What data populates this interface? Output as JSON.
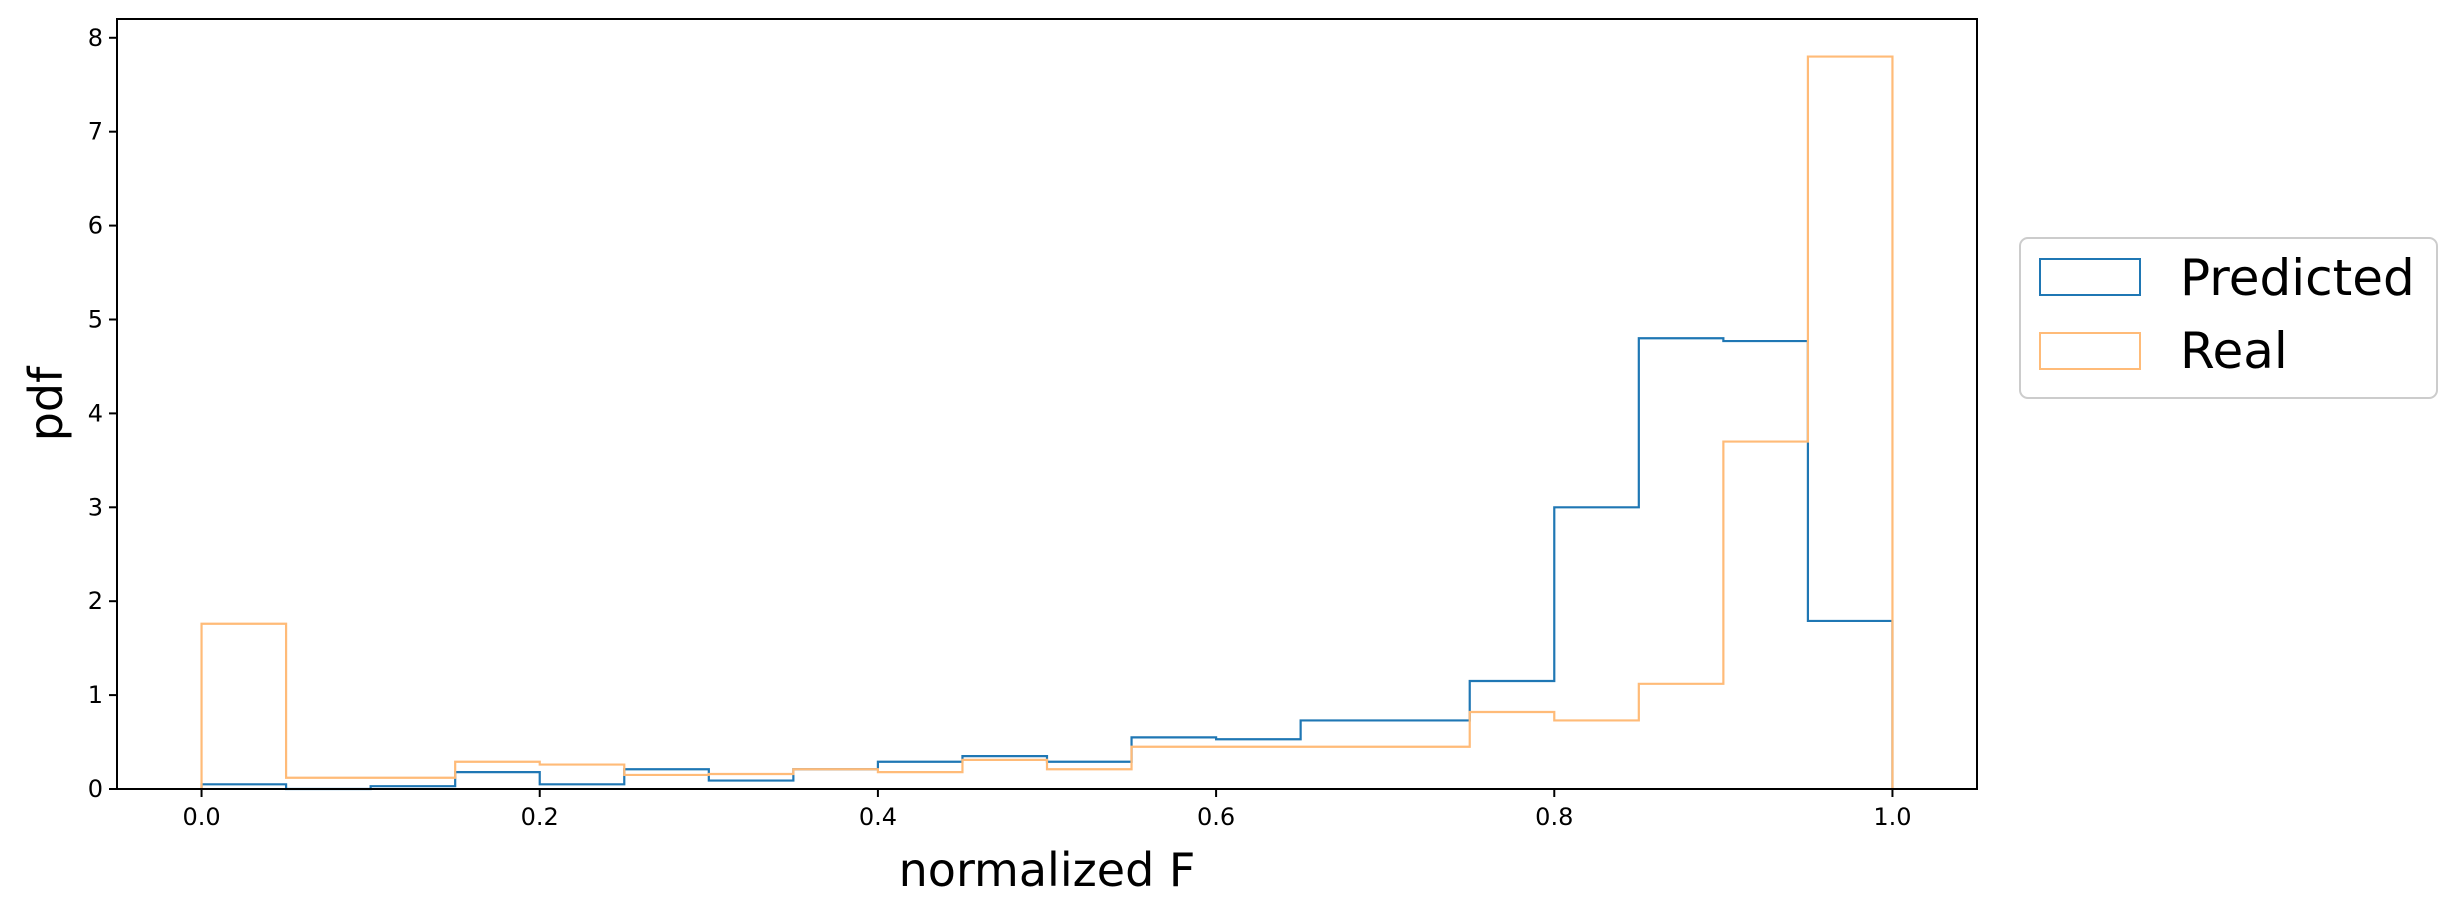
{
  "chart_data": {
    "type": "histogram",
    "title": "",
    "xlabel": "normalized F",
    "ylabel": "pdf",
    "xlim": [
      -0.05,
      1.05
    ],
    "ylim": [
      0,
      8.2
    ],
    "x_ticks": [
      "0.0",
      "0.2",
      "0.4",
      "0.6",
      "0.8",
      "1.0"
    ],
    "y_ticks": [
      "0",
      "1",
      "2",
      "3",
      "4",
      "5",
      "6",
      "7",
      "8"
    ],
    "grid": false,
    "legend_position": "outside-right",
    "bin_edges": [
      0.0,
      0.05,
      0.1,
      0.15,
      0.2,
      0.25,
      0.3,
      0.35,
      0.4,
      0.45,
      0.5,
      0.55,
      0.6,
      0.65,
      0.7,
      0.75,
      0.8,
      0.85,
      0.9,
      0.95,
      1.0
    ],
    "series": [
      {
        "name": "Predicted",
        "color": "#1f77b4",
        "values": [
          0.05,
          0.0,
          0.03,
          0.18,
          0.05,
          0.21,
          0.09,
          0.21,
          0.29,
          0.35,
          0.29,
          0.55,
          0.53,
          0.73,
          0.73,
          1.15,
          3.0,
          4.8,
          4.77,
          1.79
        ]
      },
      {
        "name": "Real",
        "color": "#ffbb78",
        "values": [
          1.76,
          0.12,
          0.12,
          0.29,
          0.26,
          0.15,
          0.16,
          0.21,
          0.18,
          0.31,
          0.21,
          0.45,
          0.45,
          0.45,
          0.45,
          0.82,
          0.73,
          1.12,
          3.7,
          7.8
        ]
      }
    ]
  }
}
